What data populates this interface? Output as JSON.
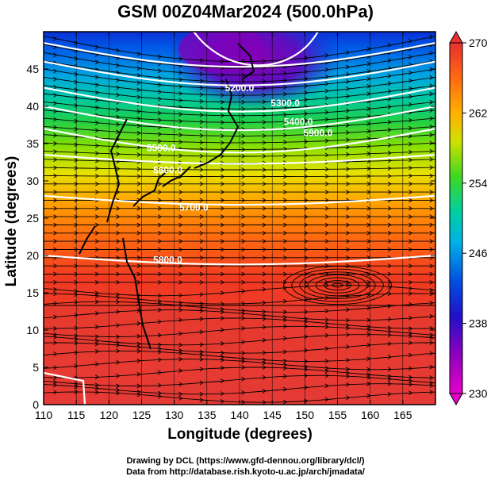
{
  "title": "GSM 00Z04Mar2024 (500.0hPa)",
  "x_axis": {
    "label": "Longitude (degrees)",
    "range": [
      110,
      170
    ],
    "ticks": [
      110,
      115,
      120,
      125,
      130,
      135,
      140,
      145,
      150,
      155,
      160,
      165
    ]
  },
  "y_axis": {
    "label": "Latitude  (degrees)",
    "range": [
      0,
      50
    ],
    "ticks": [
      0,
      5,
      10,
      15,
      20,
      25,
      30,
      35,
      40,
      45
    ]
  },
  "colorbar": {
    "range": [
      230,
      270
    ],
    "ticks": [
      230,
      238,
      246,
      254,
      262,
      270
    ],
    "colors": [
      "#e600c8",
      "#7a00b8",
      "#0020d0",
      "#00c0e0",
      "#10d070",
      "#7ae000",
      "#e8e000",
      "#ff8a00",
      "#f03820",
      "#e03030"
    ]
  },
  "contours": {
    "color": "#ffffff",
    "labels": [
      "5200.0",
      "5300.0",
      "5400.0",
      "5500.0",
      "5600.0",
      "5700.0",
      "5800.0",
      "5900.0"
    ]
  },
  "credits": {
    "line1": "Drawing by DCL (https://www.gfd-dennou.org/library/dcl/)",
    "line2": "Data from http://database.rish.kyoto-u.ac.jp/arch/jmadata/"
  }
}
